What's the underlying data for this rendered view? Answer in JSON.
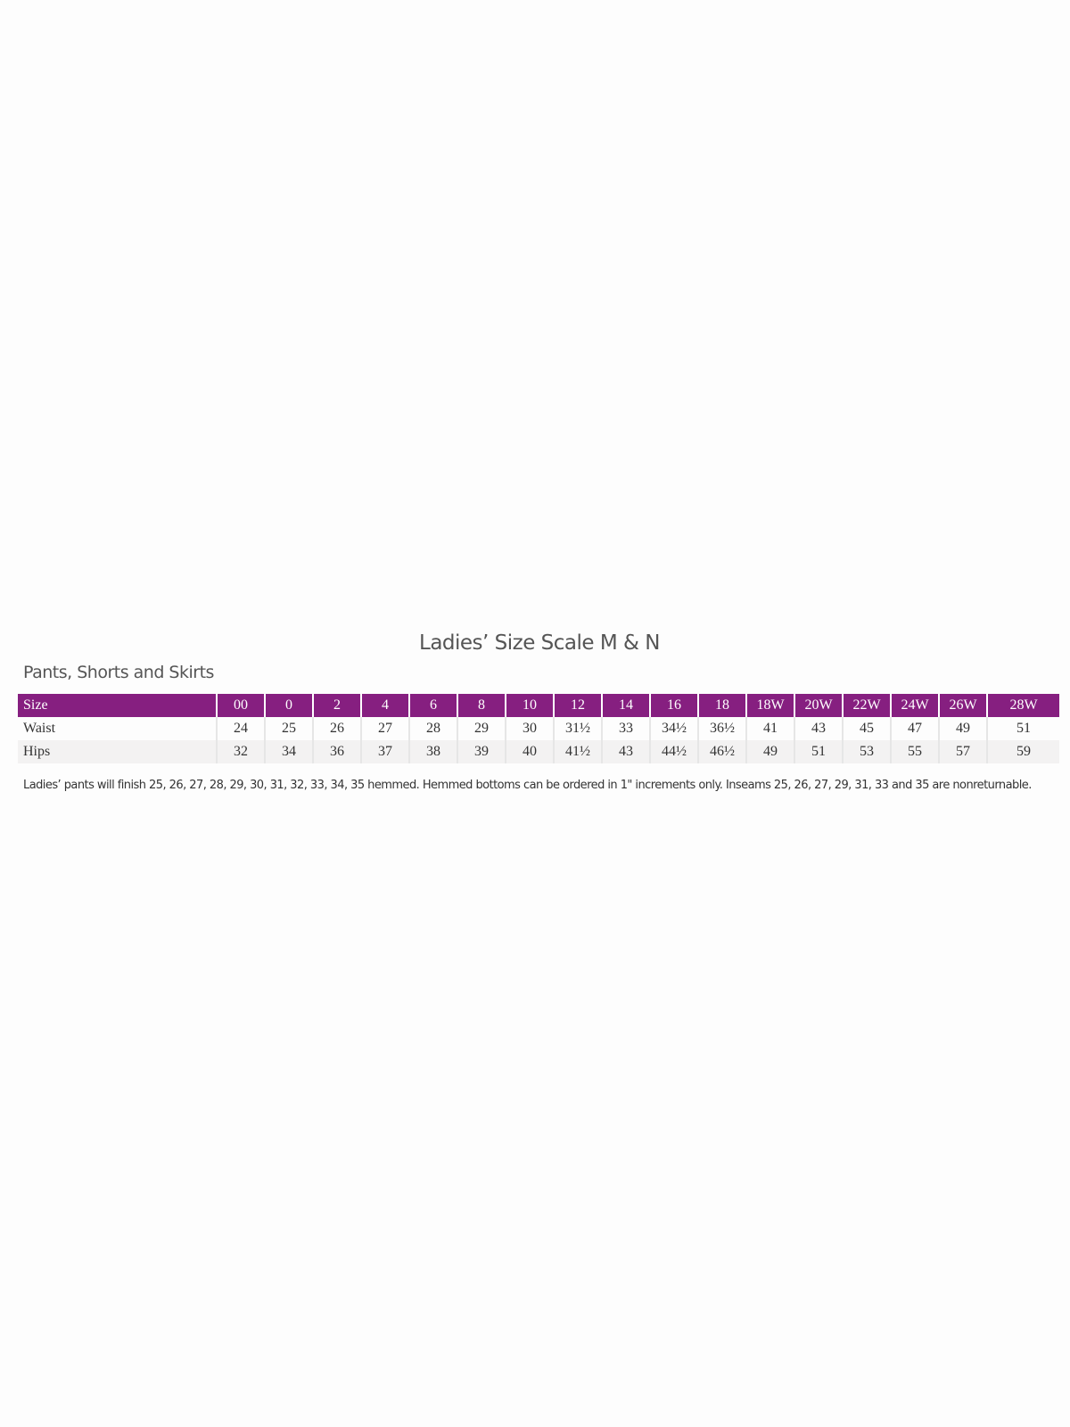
{
  "title": "Ladies’ Size Scale M & N",
  "subtitle": "Pants, Shorts and Skirts",
  "colors": {
    "header_bg": "#861f80",
    "alt_row_bg": "#f3f2f2"
  },
  "table": {
    "header": {
      "label": "Size",
      "values": [
        "00",
        "0",
        "2",
        "4",
        "6",
        "8",
        "10",
        "12",
        "14",
        "16",
        "18",
        "18W",
        "20W",
        "22W",
        "24W",
        "26W",
        "28W"
      ]
    },
    "rows": [
      {
        "label": "Waist",
        "values": [
          "24",
          "25",
          "26",
          "27",
          "28",
          "29",
          "30",
          "31½",
          "33",
          "34½",
          "36½",
          "41",
          "43",
          "45",
          "47",
          "49",
          "51"
        ]
      },
      {
        "label": "Hips",
        "values": [
          "32",
          "34",
          "36",
          "37",
          "38",
          "39",
          "40",
          "41½",
          "43",
          "44½",
          "46½",
          "49",
          "51",
          "53",
          "55",
          "57",
          "59"
        ]
      }
    ]
  },
  "note": "Ladies’ pants will finish 25, 26, 27, 28, 29, 30, 31, 32, 33, 34, 35 hemmed. Hemmed bottoms can be ordered in 1\" increments only. Inseams 25, 26, 27, 29, 31, 33 and 35 are nonreturnable."
}
